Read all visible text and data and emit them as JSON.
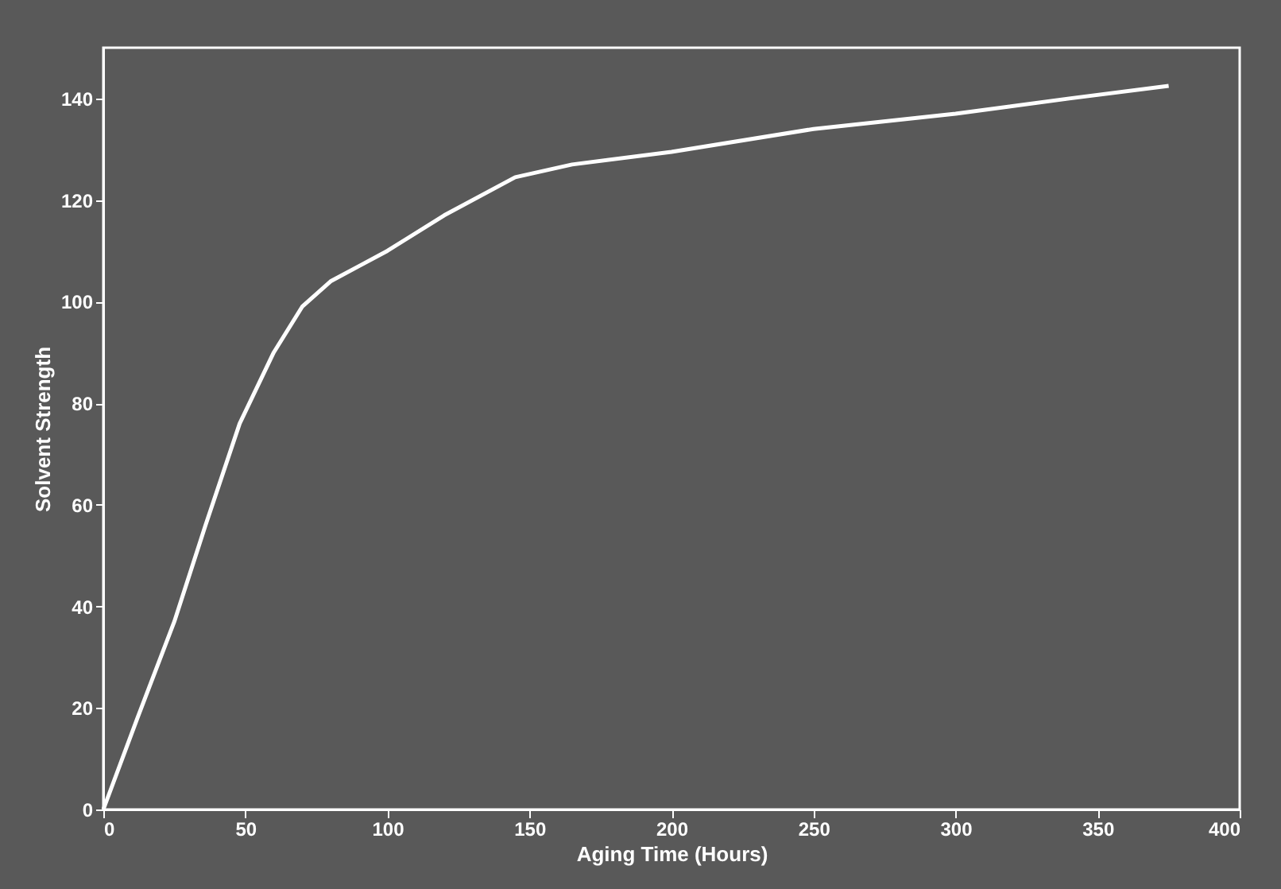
{
  "chart_data": {
    "type": "line",
    "xlabel": "Aging Time (Hours)",
    "ylabel": "Solvent Strength",
    "x": [
      0,
      12,
      25,
      36,
      48,
      60,
      70,
      80,
      90,
      100,
      120,
      145,
      165,
      200,
      250,
      300,
      340,
      375
    ],
    "series": [
      {
        "color": "#ffffff",
        "values": [
          0,
          18,
          37,
          56,
          76,
          90,
          99,
          104,
          107,
          110,
          117,
          124.5,
          127,
          129.5,
          134,
          137,
          140,
          142.5
        ]
      }
    ],
    "xlim": [
      0,
      400
    ],
    "xticks": [
      0,
      50,
      100,
      150,
      200,
      250,
      300,
      350,
      400
    ],
    "ylim": [
      0,
      150
    ],
    "yticks": [
      0,
      20,
      40,
      60,
      80,
      100,
      120,
      140
    ],
    "grid": false,
    "legend": false,
    "marker": "none",
    "line_style": "solid"
  }
}
